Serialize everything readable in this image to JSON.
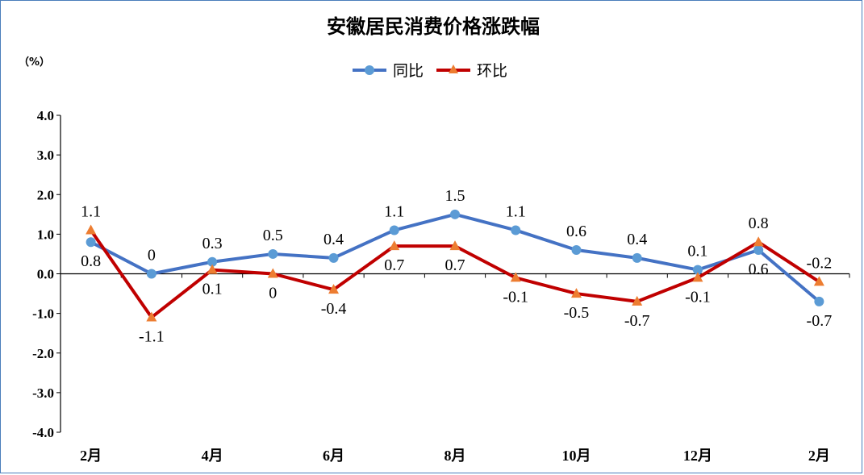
{
  "chart_data": {
    "type": "line",
    "title": "安徽居民消费价格涨跌幅",
    "unit_label": "（%）",
    "ylim": [
      -4.0,
      4.0
    ],
    "yticks": [
      "4.0",
      "3.0",
      "2.0",
      "1.0",
      "0.0",
      "-1.0",
      "-2.0",
      "-3.0",
      "-4.0"
    ],
    "ytick_values": [
      4,
      3,
      2,
      1,
      0,
      -1,
      -2,
      -3,
      -4
    ],
    "x_tick_labels": [
      "2月",
      "",
      "4月",
      "",
      "6月",
      "",
      "8月",
      "",
      "10月",
      "",
      "12月",
      "",
      "2月"
    ],
    "legend_position": "top-center",
    "series": [
      {
        "name": "同比",
        "color": "#4472c4",
        "marker": "circle",
        "marker_color": "#5b9bd5",
        "values": [
          0.8,
          0,
          0.3,
          0.5,
          0.4,
          1.1,
          1.5,
          1.1,
          0.6,
          0.4,
          0.1,
          0.6,
          -0.7
        ],
        "labels": [
          "0.8",
          "0",
          "0.3",
          "0.5",
          "0.4",
          "1.1",
          "1.5",
          "1.1",
          "0.6",
          "0.4",
          "0.1",
          "0.6",
          "-0.7"
        ]
      },
      {
        "name": "环比",
        "color": "#c00000",
        "marker": "triangle",
        "marker_color": "#ed7d31",
        "values": [
          1.1,
          -1.1,
          0.1,
          0,
          -0.4,
          0.7,
          0.7,
          -0.1,
          -0.5,
          -0.7,
          -0.1,
          0.8,
          -0.2
        ],
        "labels": [
          "1.1",
          "-1.1",
          "0.1",
          "0",
          "-0.4",
          "0.7",
          "0.7",
          "-0.1",
          "-0.5",
          "-0.7",
          "-0.1",
          "0.8",
          "-0.2"
        ]
      }
    ]
  }
}
